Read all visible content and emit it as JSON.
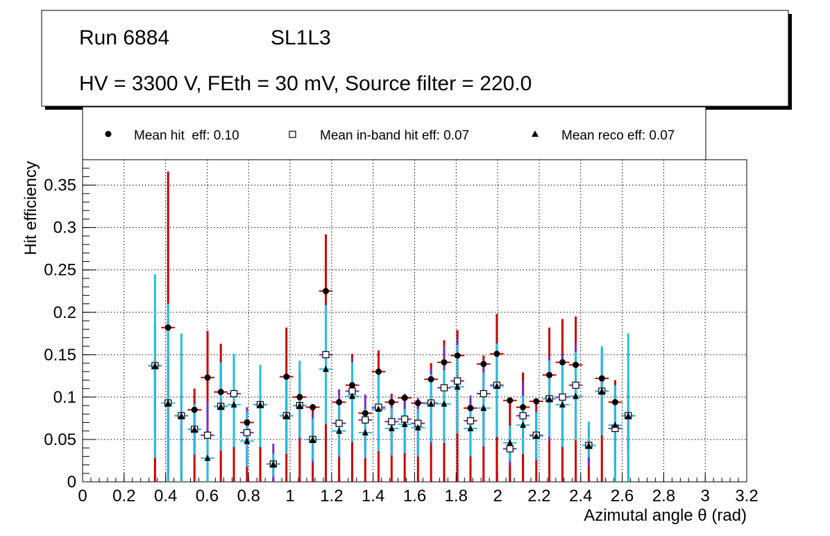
{
  "title_box": {
    "run_label": "Run 6884",
    "layer_label": "SL1L3",
    "conditions": "HV = 3300 V, FEth = 30 mV, Source filter = 220.0"
  },
  "legend": {
    "entries": [
      {
        "marker": "circle",
        "label": "Mean hit  eff: 0.10"
      },
      {
        "marker": "open-square",
        "label": "Mean in-band hit eff: 0.07"
      },
      {
        "marker": "triangle",
        "label": "Mean reco eff: 0.07"
      }
    ]
  },
  "chart_data": {
    "type": "scatter",
    "xlabel": "Azimutal angle θ (rad)",
    "ylabel": "Hit efficiency",
    "xlim": [
      0,
      3.2
    ],
    "ylim": [
      0,
      0.38
    ],
    "grid": true,
    "x_ticks": [
      {
        "v": 0,
        "label": "0"
      },
      {
        "v": 0.2,
        "label": "0.2"
      },
      {
        "v": 0.4,
        "label": "0.4"
      },
      {
        "v": 0.6,
        "label": "0.6"
      },
      {
        "v": 0.8,
        "label": "0.8"
      },
      {
        "v": 1.0,
        "label": "1"
      },
      {
        "v": 1.2,
        "label": "1.2"
      },
      {
        "v": 1.4,
        "label": "1.4"
      },
      {
        "v": 1.6,
        "label": "1.6"
      },
      {
        "v": 1.8,
        "label": "1.8"
      },
      {
        "v": 2.0,
        "label": "2"
      },
      {
        "v": 2.2,
        "label": "2.2"
      },
      {
        "v": 2.4,
        "label": "2.4"
      },
      {
        "v": 2.6,
        "label": "2.6"
      },
      {
        "v": 2.8,
        "label": "2.8"
      },
      {
        "v": 3.0,
        "label": "3"
      },
      {
        "v": 3.2,
        "label": "3.2"
      }
    ],
    "y_ticks": [
      {
        "v": 0,
        "label": "0"
      },
      {
        "v": 0.05,
        "label": "0.05"
      },
      {
        "v": 0.1,
        "label": "0.1"
      },
      {
        "v": 0.15,
        "label": "0.15"
      },
      {
        "v": 0.2,
        "label": "0.2"
      },
      {
        "v": 0.25,
        "label": "0.25"
      },
      {
        "v": 0.3,
        "label": "0.3"
      },
      {
        "v": 0.35,
        "label": "0.35"
      }
    ],
    "x_half_width": 0.033,
    "x": [
      0.349,
      0.412,
      0.476,
      0.539,
      0.602,
      0.666,
      0.729,
      0.792,
      0.856,
      0.919,
      0.982,
      1.046,
      1.109,
      1.172,
      1.236,
      1.299,
      1.362,
      1.426,
      1.489,
      1.552,
      1.616,
      1.679,
      1.742,
      1.806,
      1.869,
      1.932,
      1.996,
      2.059,
      2.122,
      2.186,
      2.249,
      2.312,
      2.376,
      2.439,
      2.502,
      2.566,
      2.629
    ],
    "series": [
      {
        "name": "Mean hit eff",
        "marker": "circle",
        "err_color": "#cc0000",
        "values": [
          0.137,
          0.182,
          0.078,
          0.085,
          0.123,
          0.106,
          0.104,
          0.07,
          0.091,
          0.021,
          0.124,
          0.1,
          0.088,
          0.225,
          0.094,
          0.114,
          0.081,
          0.13,
          0.094,
          0.099,
          0.093,
          0.121,
          0.141,
          0.149,
          0.087,
          0.139,
          0.151,
          0.096,
          0.088,
          0.095,
          0.126,
          0.141,
          0.138,
          0.043,
          0.122,
          0.094,
          0.078
        ],
        "err_low": [
          0.137,
          0.182,
          0.078,
          0.085,
          0.123,
          0.106,
          0.104,
          0.07,
          0.091,
          0.021,
          0.124,
          0.1,
          0.088,
          0.225,
          0.094,
          0.114,
          0.081,
          0.13,
          0.094,
          0.099,
          0.093,
          0.121,
          0.141,
          0.149,
          0.087,
          0.139,
          0.151,
          0.096,
          0.088,
          0.095,
          0.126,
          0.141,
          0.138,
          0.043,
          0.122,
          0.094,
          0.078
        ],
        "err_high": [
          0.0,
          0.184,
          0.0,
          0.025,
          0.055,
          0.057,
          0.0,
          0.0,
          0.0,
          0.0,
          0.058,
          0.0,
          0.0,
          0.067,
          0.0,
          0.037,
          0.0,
          0.025,
          0.01,
          0.0,
          0.0,
          0.019,
          0.026,
          0.03,
          0.0,
          0.01,
          0.047,
          0.0,
          0.041,
          0.0,
          0.056,
          0.051,
          0.057,
          0.0,
          0.0,
          0.026,
          0.0
        ]
      },
      {
        "name": "Mean in-band hit eff",
        "marker": "open-square",
        "err_color": "#7a2bc9",
        "values": [
          0.137,
          0.093,
          0.078,
          0.062,
          0.055,
          0.089,
          0.104,
          0.058,
          0.091,
          0.021,
          0.078,
          0.09,
          0.05,
          0.15,
          0.069,
          0.107,
          0.073,
          0.088,
          0.071,
          0.074,
          0.069,
          0.093,
          0.111,
          0.119,
          0.072,
          0.104,
          0.114,
          0.039,
          0.078,
          0.055,
          0.098,
          0.1,
          0.114,
          0.043,
          0.107,
          0.063,
          0.078
        ],
        "err_low": [
          0.08,
          0.09,
          0.078,
          0.03,
          0.05,
          0.05,
          0.05,
          0.04,
          0.05,
          0.021,
          0.04,
          0.04,
          0.03,
          0.08,
          0.04,
          0.06,
          0.04,
          0.05,
          0.04,
          0.04,
          0.04,
          0.05,
          0.06,
          0.06,
          0.04,
          0.05,
          0.06,
          0.02,
          0.04,
          0.03,
          0.05,
          0.05,
          0.06,
          0.025,
          0.05,
          0.04,
          0.04
        ],
        "err_high": [
          0.05,
          0.06,
          0.03,
          0.03,
          0.04,
          0.05,
          0.047,
          0.03,
          0.04,
          0.024,
          0.05,
          0.04,
          0.03,
          0.06,
          0.04,
          0.04,
          0.03,
          0.04,
          0.03,
          0.03,
          0.03,
          0.04,
          0.05,
          0.05,
          0.03,
          0.04,
          0.05,
          0.02,
          0.04,
          0.03,
          0.05,
          0.05,
          0.05,
          0.02,
          0.05,
          0.04,
          0.04
        ]
      },
      {
        "name": "Mean reco eff",
        "marker": "triangle",
        "err_color": "#22bfe6",
        "values": [
          0.137,
          0.093,
          0.078,
          0.062,
          0.028,
          0.089,
          0.091,
          0.048,
          0.091,
          0.021,
          0.078,
          0.09,
          0.05,
          0.133,
          0.06,
          0.101,
          0.058,
          0.086,
          0.063,
          0.068,
          0.064,
          0.092,
          0.092,
          0.112,
          0.063,
          0.087,
          0.113,
          0.046,
          0.067,
          0.054,
          0.098,
          0.091,
          0.101,
          0.043,
          0.107,
          0.067,
          0.078
        ],
        "err_low": [
          0.109,
          0.093,
          0.078,
          0.03,
          0.028,
          0.052,
          0.05,
          0.03,
          0.05,
          0.015,
          0.045,
          0.038,
          0.025,
          0.065,
          0.03,
          0.054,
          0.03,
          0.05,
          0.032,
          0.034,
          0.034,
          0.045,
          0.046,
          0.055,
          0.033,
          0.045,
          0.06,
          0.022,
          0.034,
          0.028,
          0.045,
          0.05,
          0.052,
          0.014,
          0.052,
          0.067,
          0.078
        ],
        "err_high": [
          0.108,
          0.117,
          0.097,
          0.03,
          0.03,
          0.052,
          0.06,
          0.035,
          0.047,
          0.012,
          0.045,
          0.053,
          0.025,
          0.075,
          0.03,
          0.04,
          0.028,
          0.04,
          0.024,
          0.018,
          0.022,
          0.035,
          0.04,
          0.05,
          0.023,
          0.042,
          0.05,
          0.02,
          0.034,
          0.028,
          0.045,
          0.05,
          0.052,
          0.028,
          0.053,
          0.047,
          0.097
        ]
      }
    ]
  }
}
